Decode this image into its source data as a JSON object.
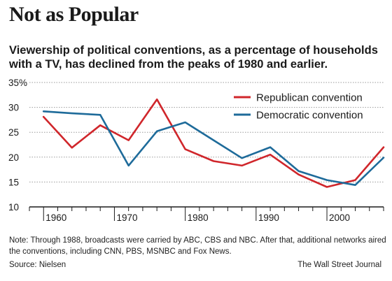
{
  "header": {
    "title": "Not as Popular",
    "subtitle": "Viewership of political conventions, as a percentage of households with a TV, has declined from the peaks of 1980 and earlier."
  },
  "footer": {
    "note": "Note: Through 1988, broadcasts were carried by ABC, CBS and NBC. After that, additional networks aired the conventions, including CNN, PBS, MSNBC and Fox News.",
    "source": "Source: Nielsen",
    "credit": "The Wall Street Journal"
  },
  "colors": {
    "republican": "#d0262b",
    "democratic": "#1e6b9a",
    "grid": "#9a9a9a",
    "axis": "#1a1a1a"
  },
  "chart_data": {
    "type": "line",
    "title": "Not as Popular",
    "xlabel": "",
    "ylabel": "",
    "x": [
      1960,
      1964,
      1968,
      1972,
      1976,
      1980,
      1984,
      1988,
      1992,
      1996,
      2000,
      2004,
      2008
    ],
    "xlim": [
      1958,
      2008
    ],
    "ylim": [
      10,
      35
    ],
    "y_ticks": [
      10,
      15,
      20,
      25,
      30,
      35
    ],
    "y_tick_labels": [
      "10",
      "15",
      "20",
      "25",
      "30",
      "35%"
    ],
    "x_ticks": [
      1960,
      1970,
      1980,
      1990,
      2000
    ],
    "x_tick_labels": [
      "1960",
      "1970",
      "1980",
      "1990",
      "2000"
    ],
    "grid": true,
    "legend_position": "top-right",
    "series": [
      {
        "name": "Republican convention",
        "color": "#d0262b",
        "values": [
          28.1,
          21.9,
          26.4,
          23.4,
          31.6,
          21.6,
          19.2,
          18.3,
          20.5,
          16.5,
          14.0,
          15.4,
          22.0
        ]
      },
      {
        "name": "Democratic convention",
        "color": "#1e6b9a",
        "values": [
          29.2,
          28.8,
          28.5,
          18.3,
          25.2,
          27.0,
          23.4,
          19.8,
          22.0,
          17.2,
          15.4,
          14.4,
          19.9
        ]
      }
    ]
  }
}
